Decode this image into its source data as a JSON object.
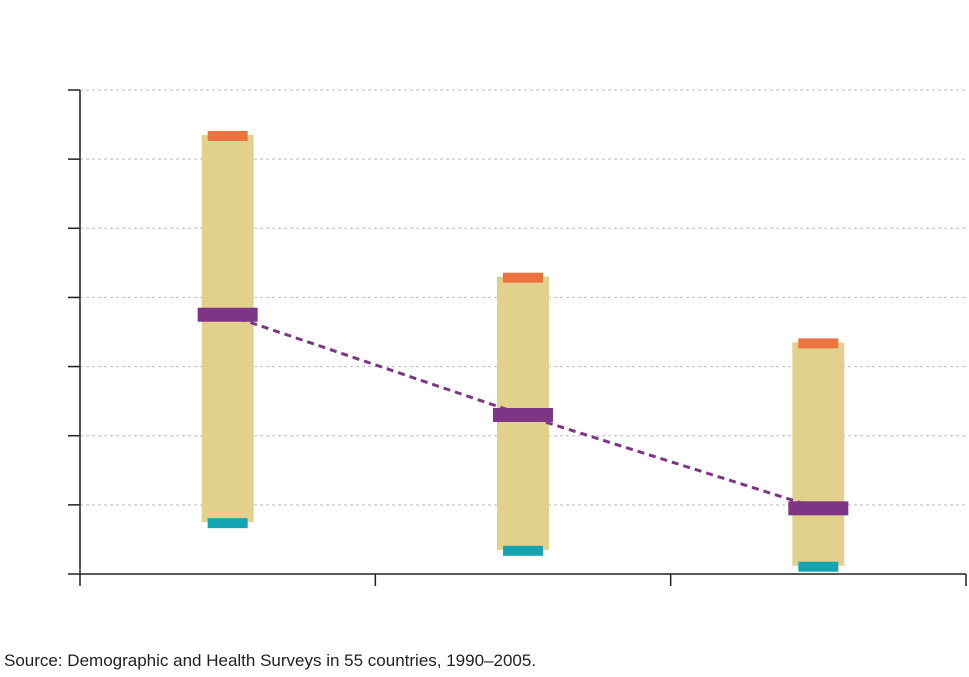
{
  "chart_data": {
    "type": "range-bar",
    "title": "",
    "xlabel": "",
    "ylabel": "",
    "categories": [
      "",
      "",
      ""
    ],
    "ylim": [
      0,
      70
    ],
    "yticks": [
      0,
      10,
      20,
      30,
      40,
      50,
      60,
      70
    ],
    "grid": "horizontal-dotted",
    "legend": "none",
    "ranges": [
      {
        "low": 7.5,
        "high": 63.5,
        "average": 37.5
      },
      {
        "low": 3.5,
        "high": 43.0,
        "average": 23.0
      },
      {
        "low": 1.2,
        "high": 33.5,
        "average": 9.5
      }
    ],
    "colors": {
      "range": "#e2d18d",
      "high": "#ec7240",
      "low": "#13a6b2",
      "average": "#7e3585",
      "grid": "#c9c9c9",
      "axis": "#222222"
    }
  },
  "footer": {
    "source": "Source: Demographic and Health Surveys in 55 countries, 1990–2005."
  }
}
